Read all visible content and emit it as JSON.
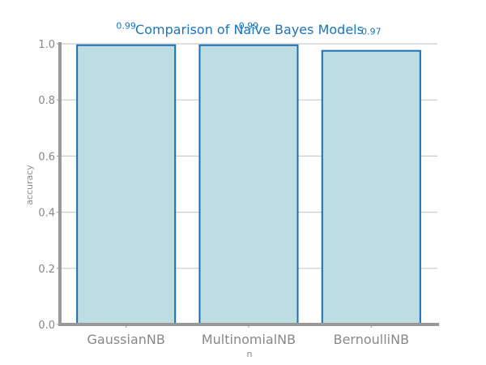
{
  "chart_data": {
    "type": "bar",
    "title": "Comparison of Naive Bayes Models",
    "xlabel": "n",
    "ylabel": "accuracy",
    "categories": [
      "GaussianNB",
      "MultinomialNB",
      "BernoulliNB"
    ],
    "values": [
      0.995,
      0.995,
      0.975
    ],
    "value_labels": [
      "0.99",
      "0.99",
      "0.97"
    ],
    "ylim": [
      0,
      1.0
    ],
    "yticks": [
      0.0,
      0.2,
      0.4,
      0.6,
      0.8,
      1.0
    ],
    "ytick_labels": [
      "0.0",
      "0.2",
      "0.4",
      "0.6",
      "0.8",
      "1.0"
    ],
    "grid": true,
    "colors": {
      "bar_fill": "#bedde2",
      "bar_edge": "#1a6fb3",
      "title": "#1a75bc",
      "value_label": "#1a75bc",
      "axis": "#999999",
      "grid": "#cccccc",
      "tick_text": "#888888"
    }
  }
}
